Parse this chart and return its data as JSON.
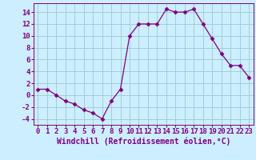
{
  "x": [
    0,
    1,
    2,
    3,
    4,
    5,
    6,
    7,
    8,
    9,
    10,
    11,
    12,
    13,
    14,
    15,
    16,
    17,
    18,
    19,
    20,
    21,
    22,
    23
  ],
  "y": [
    1,
    1,
    0,
    -1,
    -1.5,
    -2.5,
    -3,
    -4,
    -1,
    1,
    10,
    12,
    12,
    12,
    14.5,
    14,
    14,
    14.5,
    12,
    9.5,
    7,
    5,
    5,
    3
  ],
  "line_color": "#800080",
  "marker": "D",
  "marker_size": 2.5,
  "bg_color": "#cceeff",
  "grid_color": "#99cccc",
  "xlabel": "Windchill (Refroidissement éolien,°C)",
  "xlabel_fontsize": 7,
  "tick_fontsize": 6.5,
  "ylim": [
    -5,
    15.5
  ],
  "xlim": [
    -0.5,
    23.5
  ],
  "yticks": [
    -4,
    -2,
    0,
    2,
    4,
    6,
    8,
    10,
    12,
    14
  ],
  "xticks": [
    0,
    1,
    2,
    3,
    4,
    5,
    6,
    7,
    8,
    9,
    10,
    11,
    12,
    13,
    14,
    15,
    16,
    17,
    18,
    19,
    20,
    21,
    22,
    23
  ]
}
